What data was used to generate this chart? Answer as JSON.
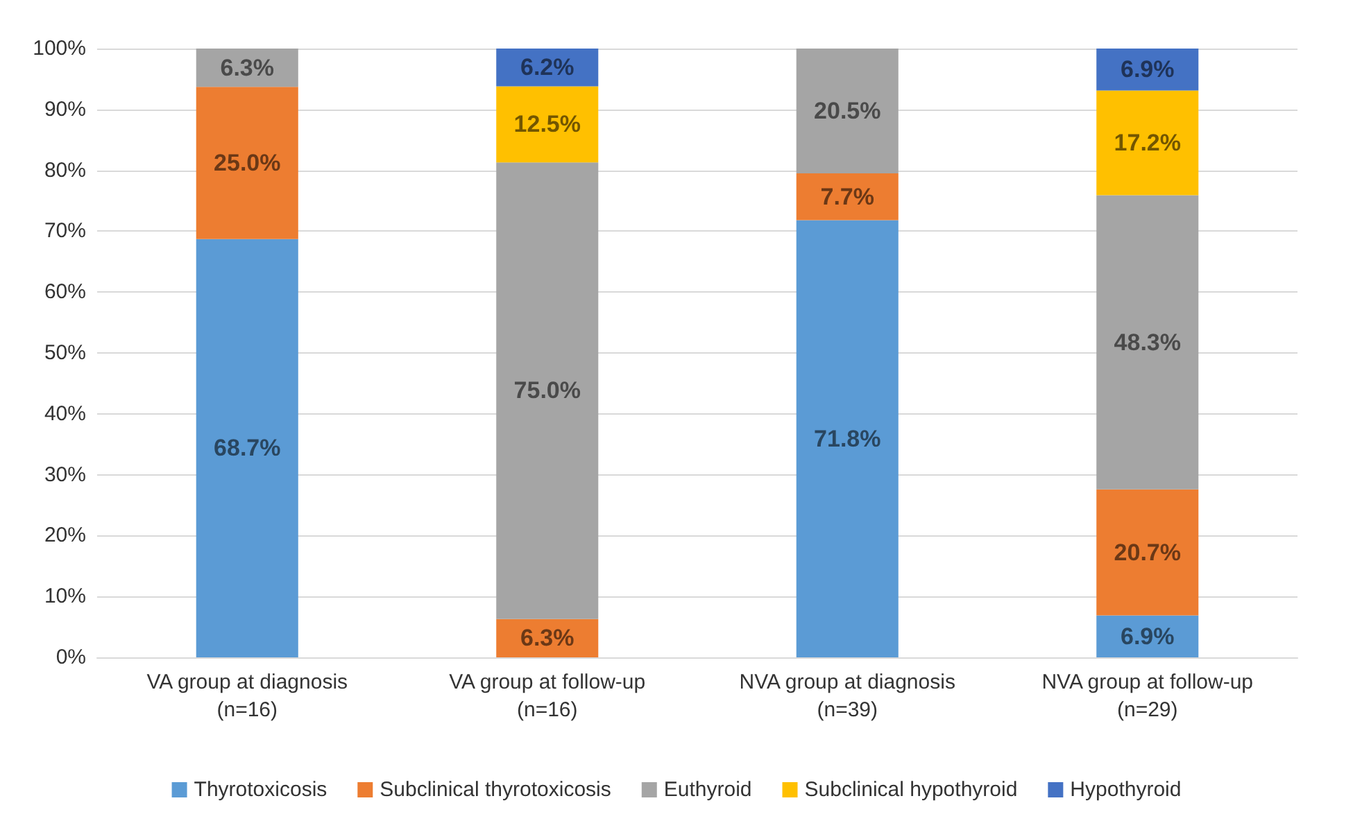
{
  "chart_data": {
    "type": "bar",
    "stacked": true,
    "categories": [
      "VA group at diagnosis\n(n=16)",
      "VA group at follow-up\n(n=16)",
      "NVA group at diagnosis\n(n=39)",
      "NVA group at follow-up\n(n=29)"
    ],
    "series": [
      {
        "name": "Thyrotoxicosis",
        "color": "#5b9bd5",
        "values": [
          68.7,
          null,
          71.8,
          6.9
        ],
        "value_labels": [
          "68.7%",
          null,
          "71.8%",
          "6.9%"
        ]
      },
      {
        "name": "Subclinical thyrotoxicosis",
        "color": "#ed7d31",
        "values": [
          25.0,
          6.3,
          7.7,
          20.7
        ],
        "value_labels": [
          "25.0%",
          "6.3%",
          "7.7%",
          "20.7%"
        ]
      },
      {
        "name": "Euthyroid",
        "color": "#a5a5a5",
        "values": [
          6.3,
          75.0,
          20.5,
          48.3
        ],
        "value_labels": [
          "6.3%",
          "75.0%",
          "20.5%",
          "48.3%"
        ]
      },
      {
        "name": "Subclinical hypothyroid",
        "color": "#ffc000",
        "values": [
          null,
          12.5,
          null,
          17.2
        ],
        "value_labels": [
          null,
          "12.5%",
          null,
          "17.2%"
        ]
      },
      {
        "name": "Hypothyroid",
        "color": "#4472c4",
        "values": [
          null,
          6.2,
          null,
          6.9
        ],
        "value_labels": [
          null,
          "6.2%",
          null,
          "6.9%"
        ]
      }
    ],
    "ylim": [
      0,
      100
    ],
    "yticks": [
      {
        "value": 0,
        "label": "0%"
      },
      {
        "value": 10,
        "label": "10%"
      },
      {
        "value": 20,
        "label": "20%"
      },
      {
        "value": 30,
        "label": "30%"
      },
      {
        "value": 40,
        "label": "40%"
      },
      {
        "value": 50,
        "label": "50%"
      },
      {
        "value": 60,
        "label": "60%"
      },
      {
        "value": 70,
        "label": "70%"
      },
      {
        "value": 80,
        "label": "80%"
      },
      {
        "value": 90,
        "label": "90%"
      },
      {
        "value": 100,
        "label": "100%"
      }
    ],
    "grid": "y",
    "legend": "bottom"
  }
}
